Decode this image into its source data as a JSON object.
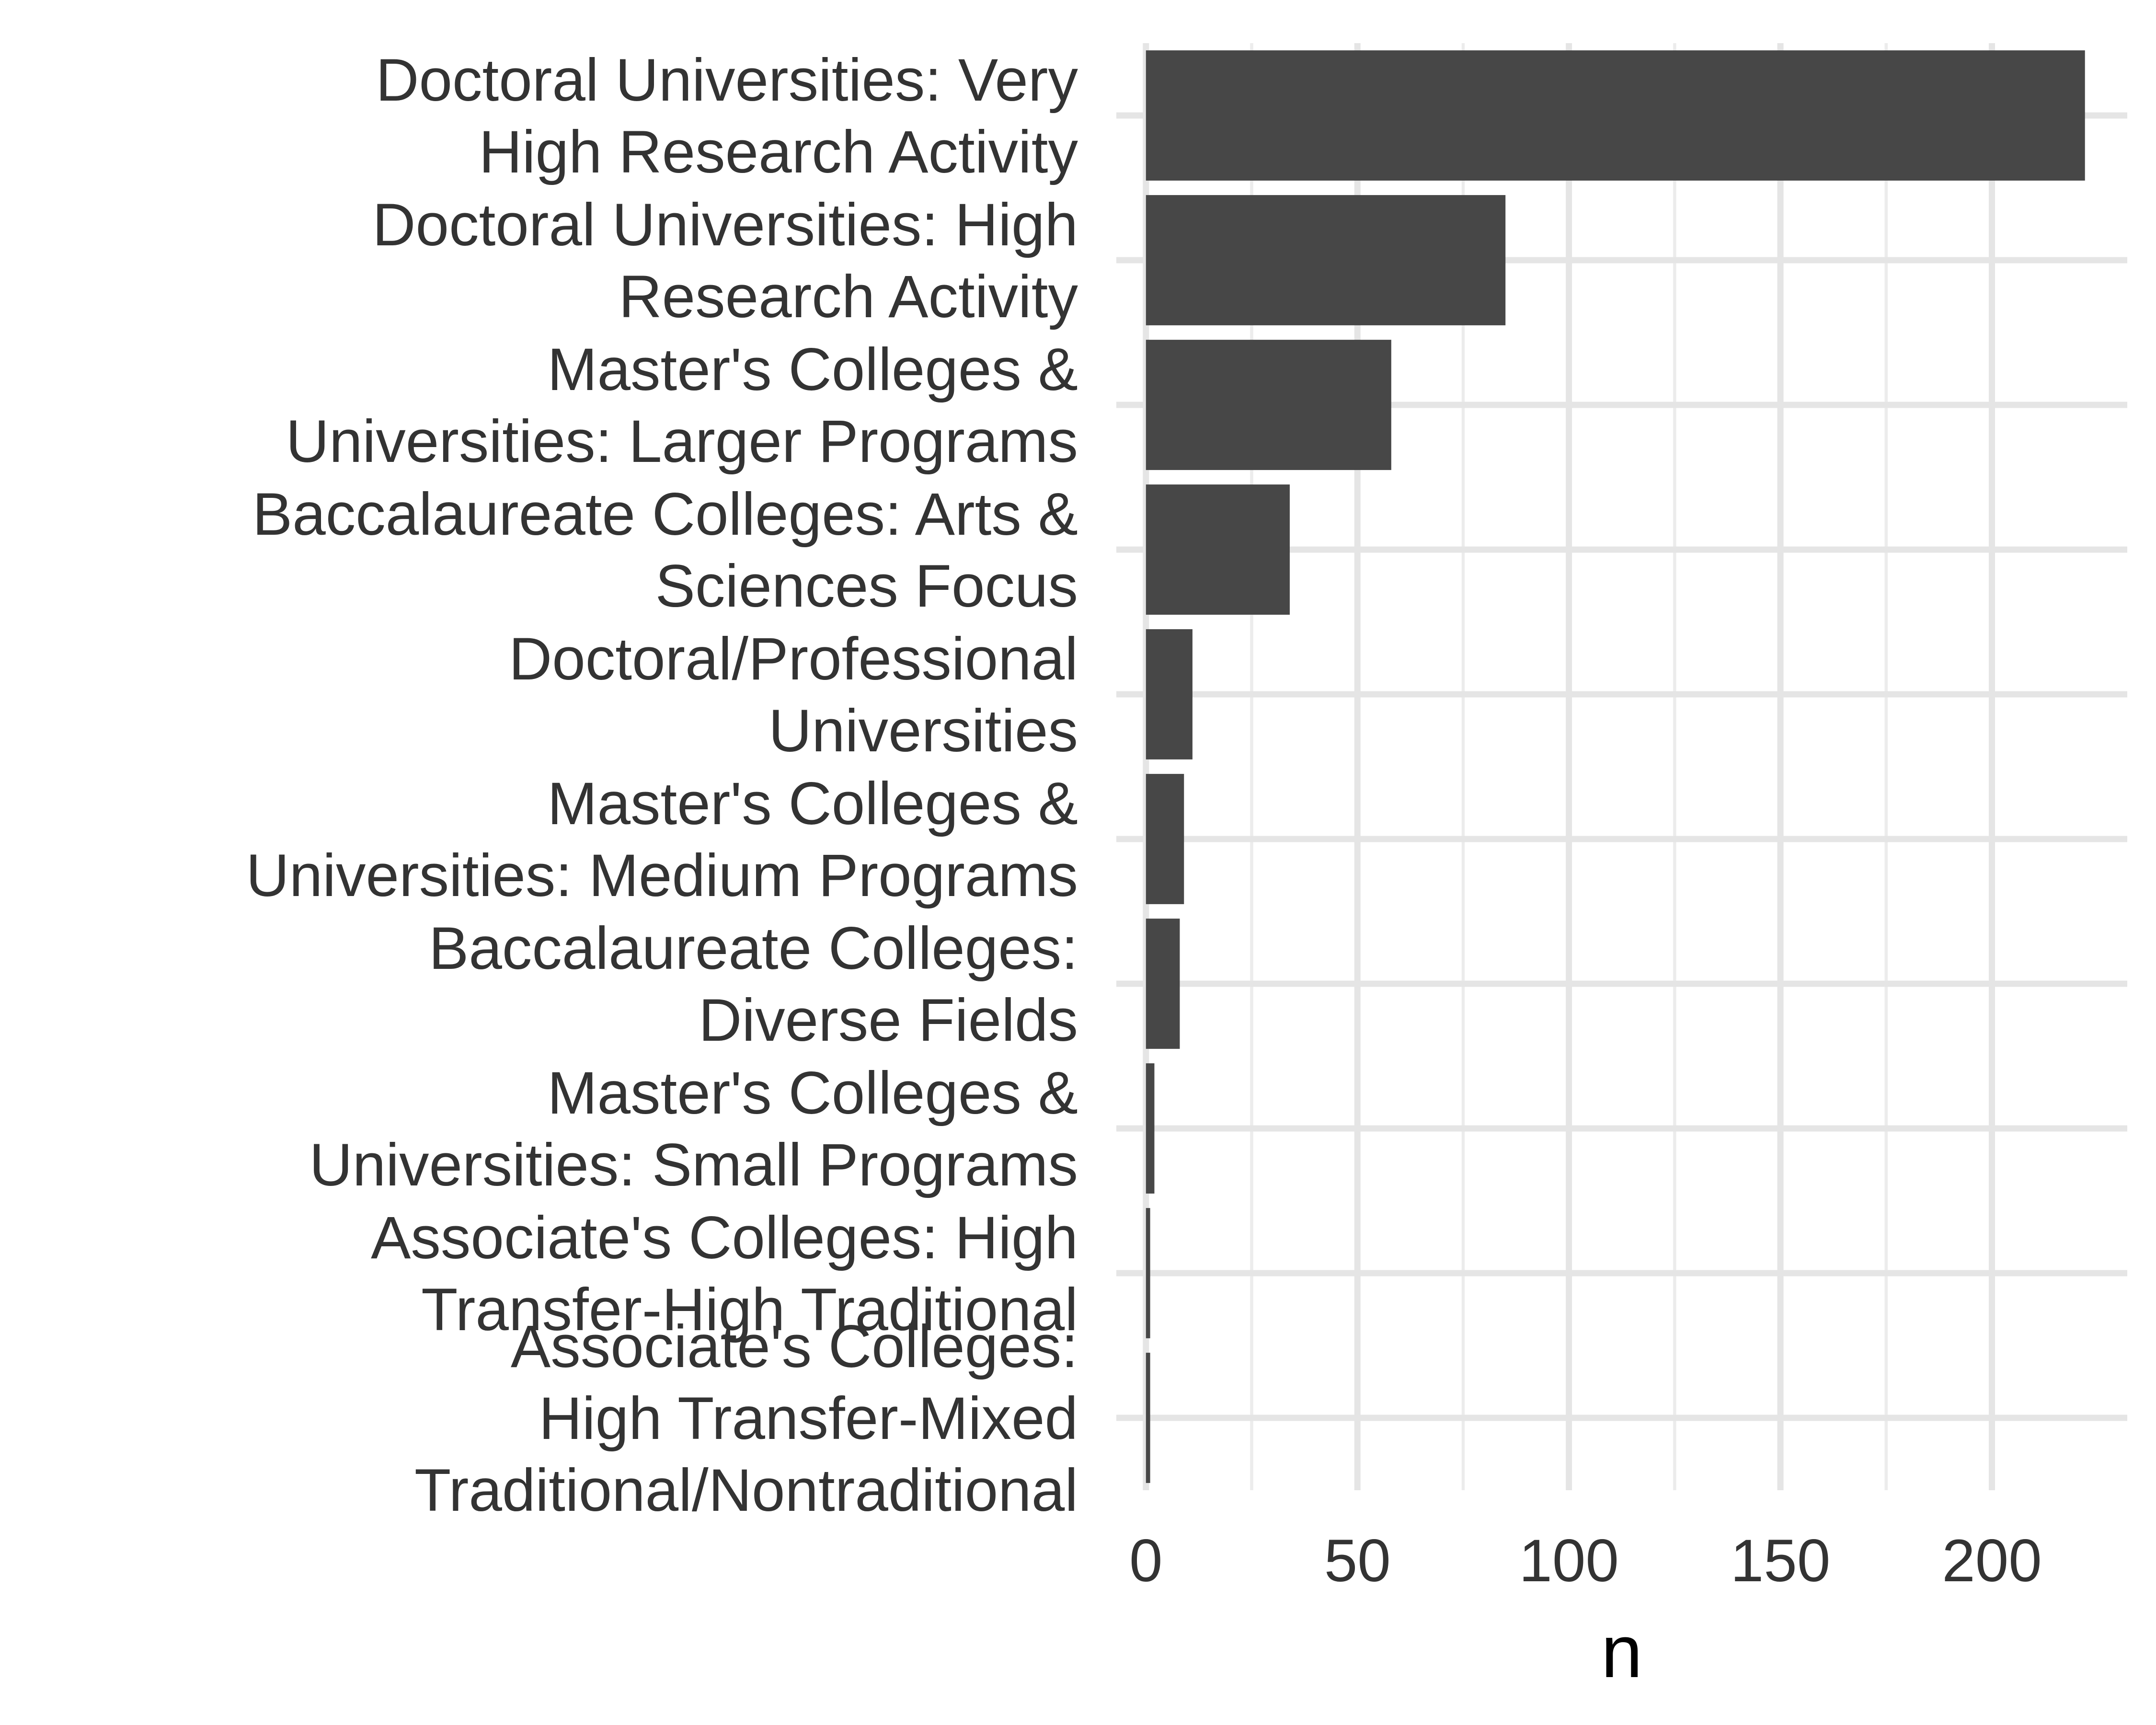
{
  "chart_data": {
    "type": "bar",
    "orientation": "horizontal",
    "categories": [
      [
        "Doctoral Universities: Very",
        "High Research Activity"
      ],
      [
        "Doctoral Universities: High",
        "Research Activity"
      ],
      [
        "Master's Colleges &",
        "Universities: Larger Programs"
      ],
      [
        "Baccalaureate Colleges: Arts &",
        "Sciences Focus"
      ],
      [
        "Doctoral/Professional",
        "Universities"
      ],
      [
        "Master's Colleges &",
        "Universities: Medium Programs"
      ],
      [
        "Baccalaureate Colleges:",
        "Diverse Fields"
      ],
      [
        "Master's Colleges &",
        "Universities: Small Programs"
      ],
      [
        "Associate's Colleges: High",
        "Transfer-High Traditional"
      ],
      [
        "Associate's Colleges:",
        "High Transfer-Mixed",
        "Traditional/Nontraditional"
      ]
    ],
    "values": [
      222,
      85,
      58,
      34,
      11,
      9,
      8,
      2,
      1,
      1
    ],
    "xlabel": "n",
    "ylabel": "",
    "xlim": [
      -7,
      232
    ],
    "x_ticks": [
      "0",
      "50",
      "100",
      "150",
      "200"
    ],
    "x_tick_values": [
      0,
      50,
      100,
      150,
      200
    ],
    "grid": true,
    "bar_color": "#474747",
    "grid_color": "#e5e5e5",
    "background": "#ffffff"
  }
}
